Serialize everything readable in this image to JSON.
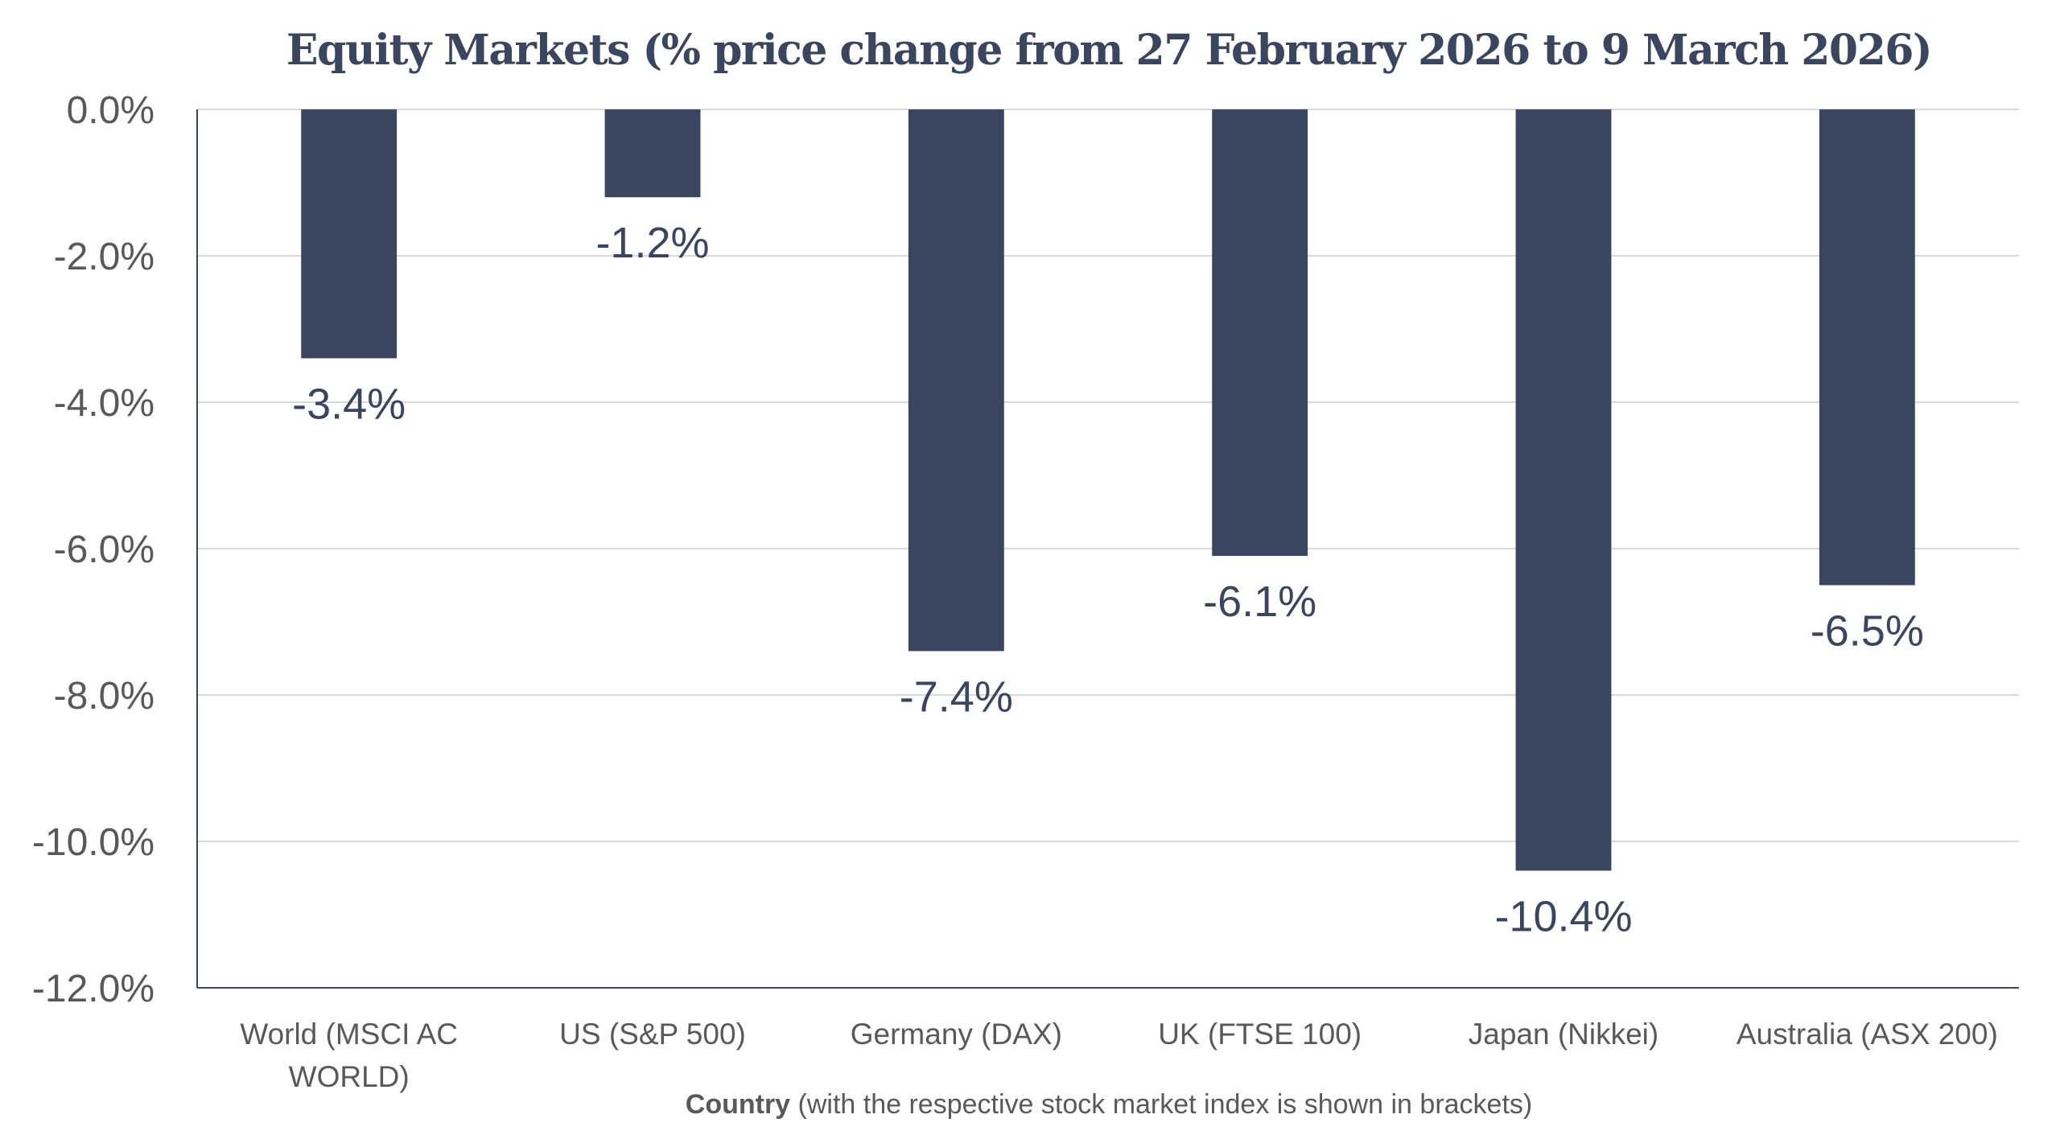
{
  "chart_data": {
    "type": "bar",
    "title": "Equity Markets (% price change from 27 February 2026 to 9 March 2026)",
    "categories": [
      [
        "World (MSCI AC",
        "WORLD)"
      ],
      [
        "US (S&P 500)"
      ],
      [
        "Germany (DAX)"
      ],
      [
        "UK (FTSE 100)"
      ],
      [
        "Japan (Nikkei)"
      ],
      [
        "Australia (ASX 200)"
      ]
    ],
    "values": [
      -3.4,
      -1.2,
      -7.4,
      -6.1,
      -10.4,
      -6.5
    ],
    "data_labels": [
      "-3.4%",
      "-1.2%",
      "-7.4%",
      "-6.1%",
      "-10.4%",
      "-6.5%"
    ],
    "xlabel_bold": "Country",
    "xlabel_rest": " (with the respective stock market index is shown in brackets)",
    "ylabel": "",
    "ylim": [
      -12,
      0
    ],
    "yticks": [
      0,
      -2,
      -4,
      -6,
      -8,
      -10,
      -12
    ],
    "ytick_labels": [
      "0.0%",
      "-2.0%",
      "-4.0%",
      "-6.0%",
      "-8.0%",
      "-10.0%",
      "-12.0%"
    ],
    "grid": true,
    "legend": "none",
    "colors": {
      "bar": "#3a4560",
      "label": "#3a4560",
      "axis_text": "#595959",
      "grid": "#d9d9d9"
    }
  }
}
